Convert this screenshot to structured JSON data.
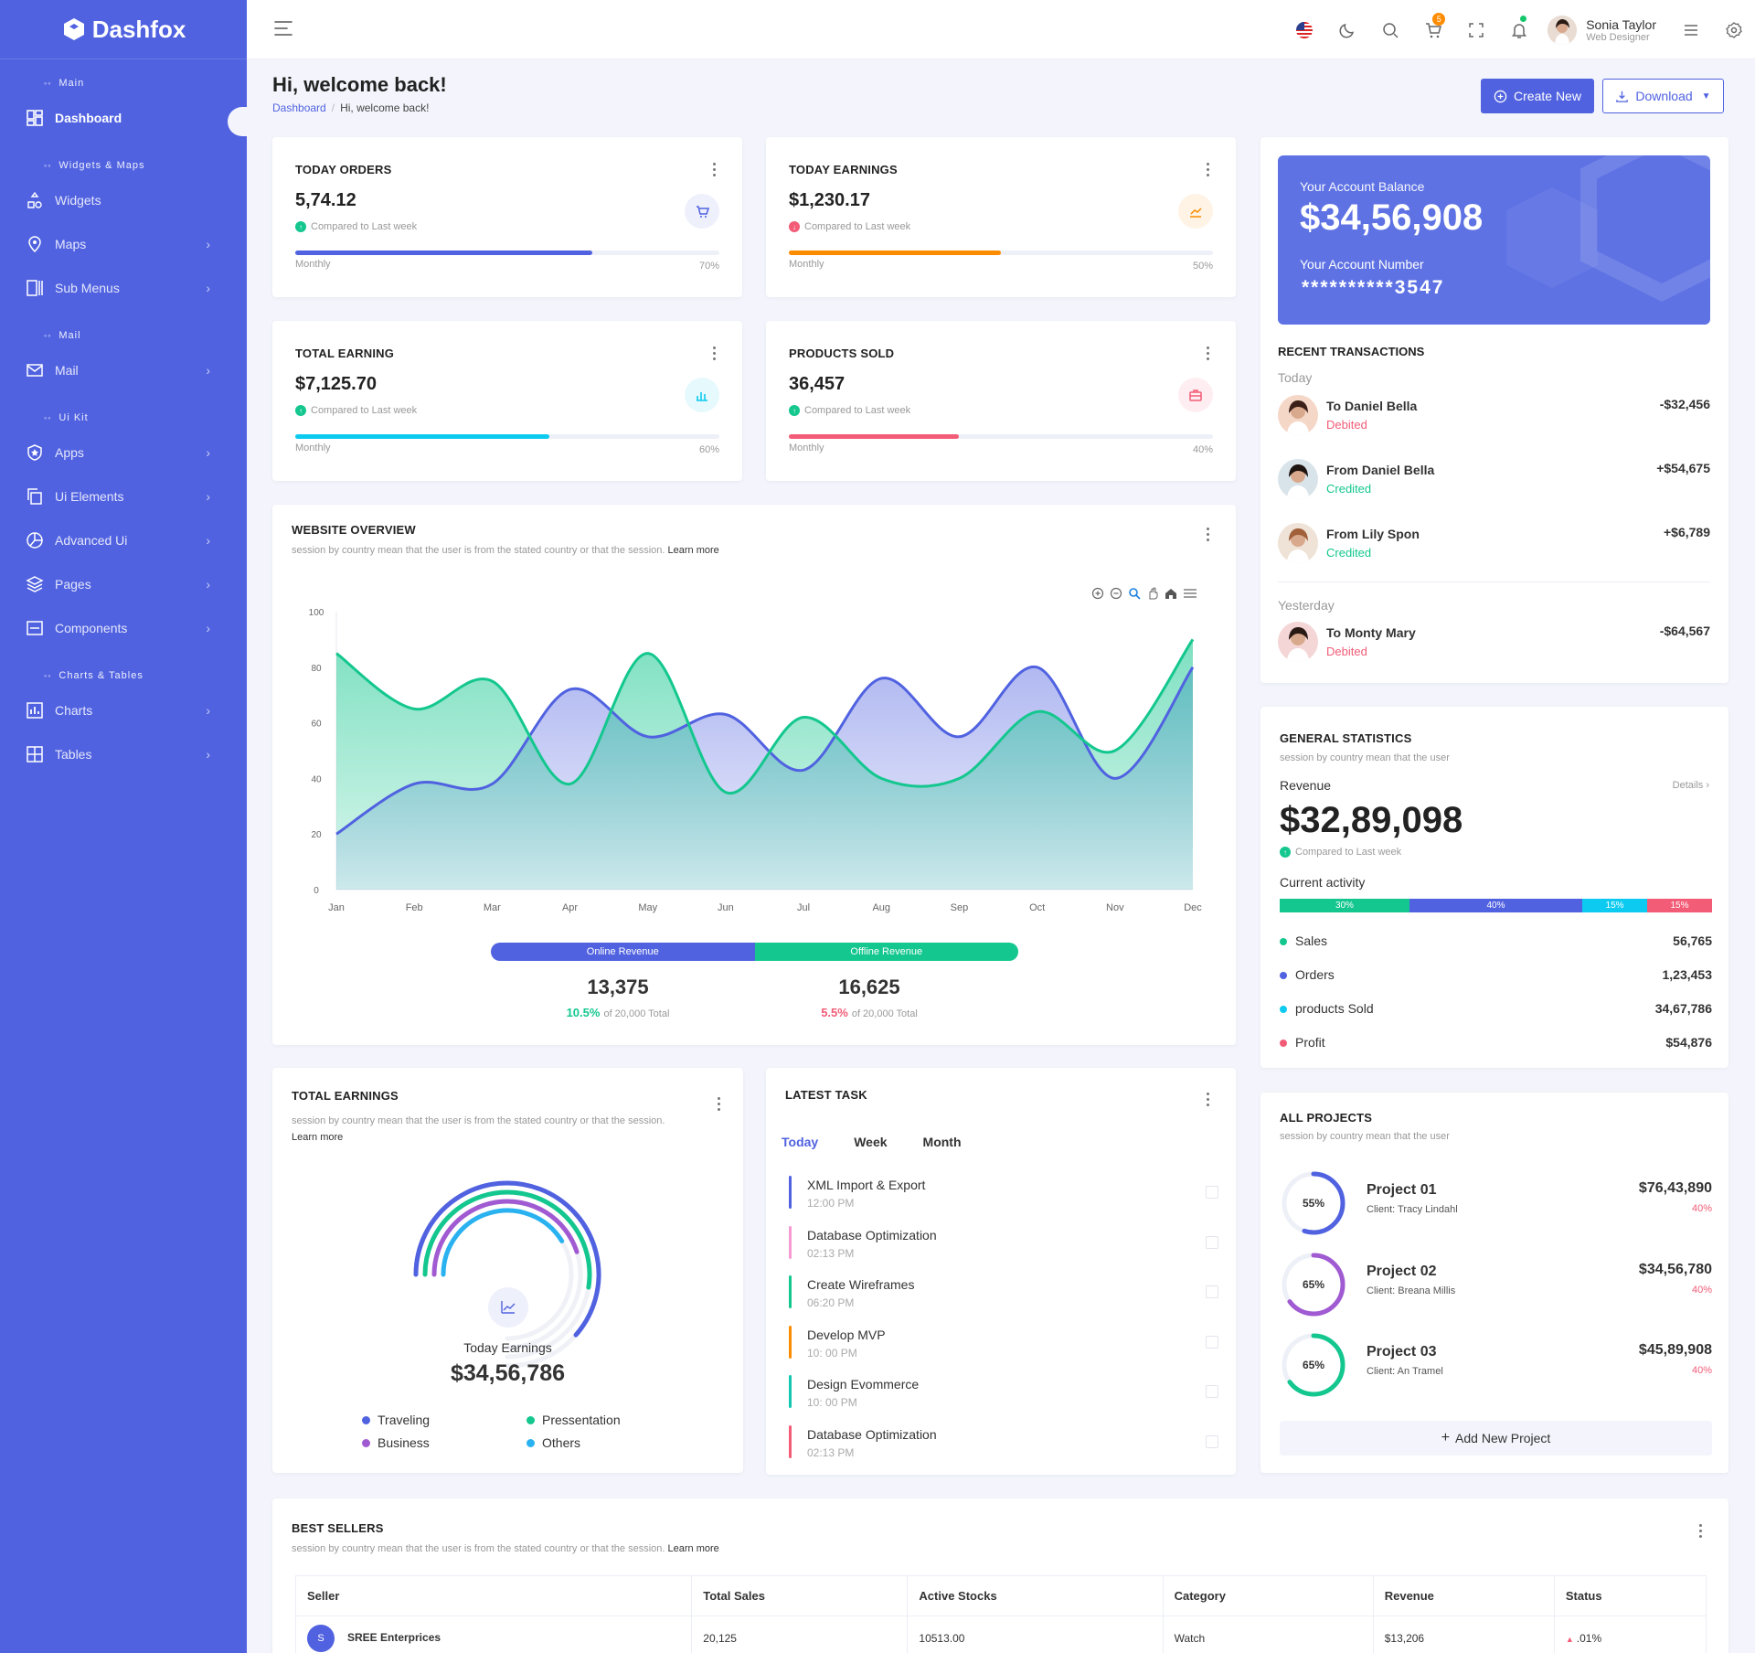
{
  "brand": {
    "name": "Dashfox"
  },
  "sidebar": {
    "sections": [
      {
        "title": "Main",
        "items": [
          {
            "label": "Dashboard",
            "icon": "dashboard-icon",
            "active": true,
            "chevron": false
          }
        ]
      },
      {
        "title": "Widgets & Maps",
        "items": [
          {
            "label": "Widgets",
            "icon": "widgets-icon",
            "chevron": false
          },
          {
            "label": "Maps",
            "icon": "map-pin-icon",
            "chevron": true
          },
          {
            "label": "Sub Menus",
            "icon": "columns-icon",
            "chevron": true
          }
        ]
      },
      {
        "title": "Mail",
        "items": [
          {
            "label": "Mail",
            "icon": "mail-icon",
            "chevron": true
          }
        ]
      },
      {
        "title": "Ui Kit",
        "items": [
          {
            "label": "Apps",
            "icon": "apps-icon",
            "chevron": true
          },
          {
            "label": "Ui Elements",
            "icon": "copy-icon",
            "chevron": true
          },
          {
            "label": "Advanced Ui",
            "icon": "pie-icon",
            "chevron": true
          },
          {
            "label": "Pages",
            "icon": "layers-icon",
            "chevron": true
          },
          {
            "label": "Components",
            "icon": "components-icon",
            "chevron": true
          }
        ]
      },
      {
        "title": "Charts & Tables",
        "items": [
          {
            "label": "Charts",
            "icon": "bar-chart-icon",
            "chevron": true
          },
          {
            "label": "Tables",
            "icon": "table-icon",
            "chevron": true
          }
        ]
      }
    ]
  },
  "header": {
    "user": {
      "name": "Sonia Taylor",
      "role": "Web Designer"
    },
    "cart_count": "5"
  },
  "page": {
    "title": "Hi, welcome back!",
    "breadcrumb": [
      "Dashboard",
      "Hi, welcome back!"
    ],
    "create_label": "Create New",
    "download_label": "Download"
  },
  "stats": [
    {
      "title": "TODAY ORDERS",
      "value": "5,74.12",
      "compare": "Compared to Last week",
      "trend": "up",
      "label": "Monthly",
      "percent": 70,
      "percent_text": "70%",
      "color": "#5062e0",
      "icon_bg": "#eef0fc",
      "icon": "cart-icon"
    },
    {
      "title": "TODAY EARNINGS",
      "value": "$1,230.17",
      "compare": "Compared to Last week",
      "trend": "down",
      "label": "Monthly",
      "percent": 50,
      "percent_text": "50%",
      "color": "#fb8c00",
      "icon_bg": "#fff3e5",
      "icon": "trend-icon"
    },
    {
      "title": "TOTAL EARNING",
      "value": "$7,125.70",
      "compare": "Compared to Last week",
      "trend": "up",
      "label": "Monthly",
      "percent": 60,
      "percent_text": "60%",
      "color": "#0dcaf0",
      "icon_bg": "#e6f9fd",
      "icon": "chart-icon"
    },
    {
      "title": "PRODUCTS SOLD",
      "value": "36,457",
      "compare": "Compared to Last week",
      "trend": "up",
      "label": "Monthly",
      "percent": 40,
      "percent_text": "40%",
      "color": "#f25c77",
      "icon_bg": "#feeef1",
      "icon": "briefcase-icon"
    }
  ],
  "account": {
    "balance_label": "Your Account Balance",
    "balance": "$34,56,908",
    "number_label": "Your Account Number",
    "number": "**********3547"
  },
  "transactions": {
    "title": "RECENT TRANSACTIONS",
    "groups": [
      {
        "label": "Today",
        "items": [
          {
            "name": "To Daniel Bella",
            "status": "Debited",
            "amount": "-$32,456"
          },
          {
            "name": "From Daniel Bella",
            "status": "Credited",
            "amount": "+$54,675"
          },
          {
            "name": "From Lily Spon",
            "status": "Credited",
            "amount": "+$6,789"
          }
        ]
      },
      {
        "label": "Yesterday",
        "items": [
          {
            "name": "To Monty Mary",
            "status": "Debited",
            "amount": "-$64,567"
          }
        ]
      }
    ]
  },
  "overview": {
    "title": "WEBSITE OVERVIEW",
    "desc": "session by country mean that the user is from the stated country or that the session.",
    "learn_more": "Learn more",
    "online_label": "Online Revenue",
    "offline_label": "Offline Revenue",
    "online_value": "13,375",
    "offline_value": "16,625",
    "online_pct": "10.5%",
    "offline_pct": "5.5%",
    "of_total": "of 20,000 Total"
  },
  "chart_data": {
    "type": "area",
    "categories": [
      "Jan",
      "Feb",
      "Mar",
      "Apr",
      "May",
      "Jun",
      "Jul",
      "Aug",
      "Sep",
      "Oct",
      "Nov",
      "Dec"
    ],
    "series": [
      {
        "values": [
          20,
          38,
          38,
          72,
          55,
          63,
          43,
          76,
          55,
          80,
          40,
          80
        ],
        "color": "#5062e0"
      },
      {
        "values": [
          85,
          65,
          75,
          38,
          85,
          35,
          62,
          40,
          40,
          64,
          50,
          90
        ],
        "color": "#14c78e"
      }
    ],
    "ylim": [
      0,
      100
    ],
    "yticks": [
      0,
      20,
      40,
      60,
      80,
      100
    ],
    "grid": false
  },
  "general": {
    "title": "GENERAL STATISTICS",
    "desc": "session by country mean that the user",
    "revenue_label": "Revenue",
    "details": "Details ›",
    "revenue": "$32,89,098",
    "compare": "Compared to Last week",
    "activity_label": "Current activity",
    "segments": [
      {
        "pct": 30,
        "label": "30%",
        "color": "#14c78e"
      },
      {
        "pct": 40,
        "label": "40%",
        "color": "#5062e0"
      },
      {
        "pct": 15,
        "label": "15%",
        "color": "#0dcaf0"
      },
      {
        "pct": 15,
        "label": "15%",
        "color": "#f25c77"
      }
    ],
    "legend": [
      {
        "name": "Sales",
        "value": "56,765",
        "color": "#14c78e"
      },
      {
        "name": "Orders",
        "value": "1,23,453",
        "color": "#5062e0"
      },
      {
        "name": "products Sold",
        "value": "34,67,786",
        "color": "#0dcaf0"
      },
      {
        "name": "Profit",
        "value": "$54,876",
        "color": "#f25c77"
      }
    ]
  },
  "earnings": {
    "title": "TOTAL EARNINGS",
    "desc": "session by country mean that the user is from the stated country or that the session.",
    "learn_more": "Learn more",
    "label": "Today Earnings",
    "value": "$34,56,786",
    "rings": [
      {
        "name": "Traveling",
        "color": "#5062e0",
        "fraction": 0.82
      },
      {
        "name": "Pressentation",
        "color": "#14c78e",
        "fraction": 0.7
      },
      {
        "name": "Business",
        "color": "#a05ad2",
        "fraction": 0.6
      },
      {
        "name": "Others",
        "color": "#2ab2f0",
        "fraction": 0.55
      }
    ]
  },
  "tasks": {
    "title": "LATEST TASK",
    "tabs": [
      "Today",
      "Week",
      "Month"
    ],
    "items": [
      {
        "name": "XML Import & Export",
        "time": "12:00 PM",
        "color": "#5062e0"
      },
      {
        "name": "Database Optimization",
        "time": "02:13 PM",
        "color": "#f79ad1"
      },
      {
        "name": "Create Wireframes",
        "time": "06:20 PM",
        "color": "#14c78e"
      },
      {
        "name": "Develop MVP",
        "time": "10: 00 PM",
        "color": "#fb8c00"
      },
      {
        "name": "Design Evommerce",
        "time": "10: 00 PM",
        "color": "#14c7b0"
      },
      {
        "name": "Database Optimization",
        "time": "02:13 PM",
        "color": "#f25c77"
      }
    ]
  },
  "projects": {
    "title": "ALL PROJECTS",
    "desc": "session by country mean that the user",
    "items": [
      {
        "name": "Project 01",
        "client": "Client: Tracy Lindahl",
        "amount": "$76,43,890",
        "pct": "40%",
        "progress": 55,
        "progress_text": "55%",
        "color": "#5062e0"
      },
      {
        "name": "Project 02",
        "client": "Client: Breana Millis",
        "amount": "$34,56,780",
        "pct": "40%",
        "progress": 65,
        "progress_text": "65%",
        "color": "#a05ad2"
      },
      {
        "name": "Project 03",
        "client": "Client: An Tramel",
        "amount": "$45,89,908",
        "pct": "40%",
        "progress": 65,
        "progress_text": "65%",
        "color": "#14c78e"
      }
    ],
    "add_label": "Add New Project"
  },
  "sellers": {
    "title": "BEST SELLERS",
    "desc": "session by country mean that the user is from the stated country or that the session.",
    "learn_more": "Learn more",
    "columns": [
      "Seller",
      "Total Sales",
      "Active Stocks",
      "Category",
      "Revenue",
      "Status"
    ],
    "rows": [
      {
        "initial": "S",
        "seller": "SREE Enterprices",
        "sales": "20,125",
        "stocks": "10513.00",
        "category": "Watch",
        "revenue": "$13,206",
        "status": ".01%"
      }
    ]
  }
}
